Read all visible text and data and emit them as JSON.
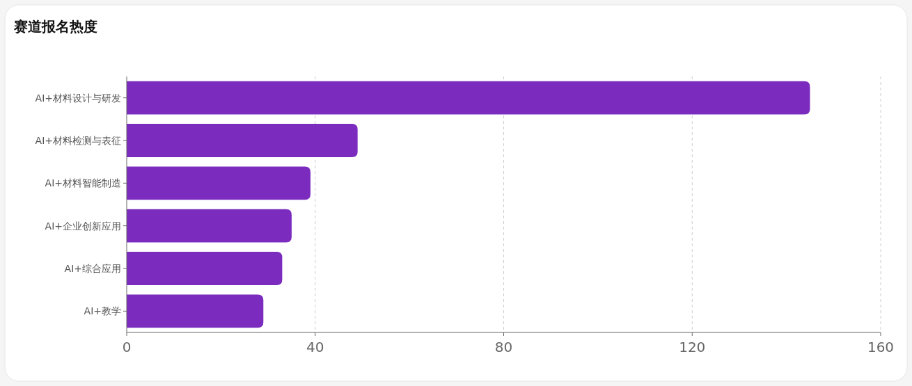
{
  "chart_data": {
    "type": "bar",
    "title": "赛道报名热度",
    "orientation": "horizontal",
    "categories": [
      "AI+材料设计与研发",
      "AI+材料检测与表征",
      "AI+材料智能制造",
      "AI+企业创新应用",
      "AI+综合应用",
      "AI+教学"
    ],
    "values": [
      145,
      49,
      39,
      35,
      33,
      29
    ],
    "color": "#7b2cbf",
    "xlim": [
      0,
      160
    ],
    "xticks": [
      0,
      40,
      80,
      120,
      160
    ],
    "grid": "x"
  }
}
